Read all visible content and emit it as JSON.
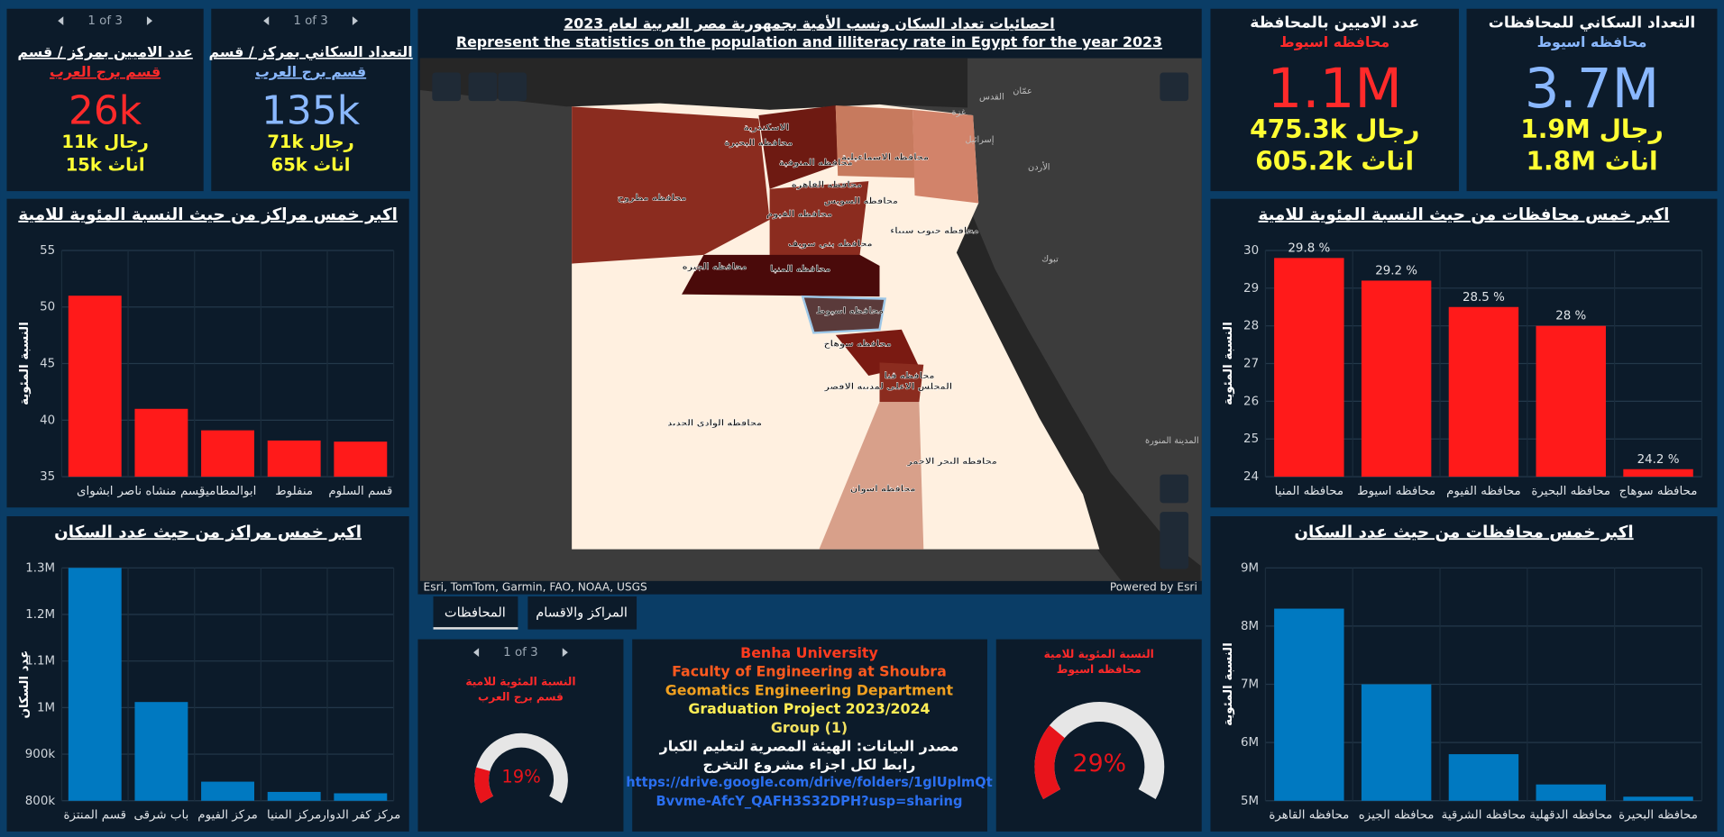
{
  "indicators": [
    {
      "pager": "1 of 3",
      "title": "عدد الاميين بمركز / قسم",
      "subtitle": "قسم برج العرب",
      "value": "26k",
      "men": "رجال 11k",
      "women": "اناث 15k",
      "color": "#ff2a2a"
    },
    {
      "pager": "1 of 3",
      "title": "التعداد السكاني بمركز / قسم",
      "subtitle": "قسم برج العرب",
      "value": "135k",
      "men": "رجال 71k",
      "women": "اناث 65k",
      "color": "#8ab8ff"
    },
    {
      "title": "عدد الاميين بالمحافظة",
      "subtitle": "محافظه اسيوط",
      "value": "1.1M",
      "men": "رجال 475.3k",
      "women": "اناث 605.2k",
      "color": "#ff2a2a"
    },
    {
      "title": "التعداد السكاني للمحافظات",
      "subtitle": "محافظه اسيوط",
      "value": "3.7M",
      "men": "رجال 1.9M",
      "women": "اناث 1.8M",
      "color": "#8ab8ff"
    }
  ],
  "chart_data": [
    {
      "type": "bar",
      "title": "اكبر خمس مراكز من حيث النسبة المئوية للامية",
      "y_label": "النسبة المئوية",
      "categories": [
        "ابشواى",
        "قسم منشاه ناصر",
        "ابوالمطامير",
        "منفلوط",
        "قسم السلوم"
      ],
      "values": [
        51,
        41,
        39.1,
        38.2,
        38.1
      ],
      "color": "#ff1a1a",
      "ylim": [
        35,
        55
      ],
      "yticks": [
        35,
        40,
        45,
        50,
        55
      ],
      "grid": true
    },
    {
      "type": "bar",
      "title": "اكبر خمس مراكز من حيث عدد السكان",
      "y_label": "عدد السكان",
      "categories": [
        "قسم المنتزة",
        "باب شرقى",
        "مركز الفيوم",
        "مركز المنيا",
        "مركز كفر الدوار"
      ],
      "values": [
        1300000,
        1012000,
        841000,
        819000,
        816000
      ],
      "color": "#0079c1",
      "ylim": [
        800000,
        1300000
      ],
      "yticks": [
        {
          "value": 800000,
          "label": "800k"
        },
        {
          "value": 900000,
          "label": "900k"
        },
        {
          "value": 1000000,
          "label": "1M"
        },
        {
          "value": 1100000,
          "label": "1.1M"
        },
        {
          "value": 1200000,
          "label": "1.2M"
        },
        {
          "value": 1300000,
          "label": "1.3M"
        }
      ],
      "grid": true
    },
    {
      "type": "bar",
      "title": "اكبر خمس محافظات من حيث النسبة المئوية للامية",
      "y_label": "النسبة المئوية",
      "categories": [
        "محافظه المنيا",
        "محافظه اسيوط",
        "محافظه الفيوم",
        "محافظه البحيرة",
        "محافظه سوهاج"
      ],
      "values": [
        29.8,
        29.2,
        28.5,
        28,
        24.2
      ],
      "value_labels": [
        "29.8 %",
        "29.2 %",
        "28.5 %",
        "28 %",
        "24.2 %"
      ],
      "color": "#ff1a1a",
      "ylim": [
        24,
        30
      ],
      "yticks": [
        24,
        25,
        26,
        27,
        28,
        29,
        30
      ],
      "grid": true
    },
    {
      "type": "bar",
      "title": "اكبر خمس محافظات من حيث عدد السكان",
      "y_label": "النسبة المئوية",
      "categories": [
        "محافظه القاهرة",
        "محافظه الجيزه",
        "محافظه الشرقية",
        "محافظه الدقهلية",
        "محافظه البحيرة"
      ],
      "values": [
        8300000,
        7000000,
        5800000,
        5280000,
        5070000
      ],
      "color": "#0079c1",
      "ylim": [
        5000000,
        9000000
      ],
      "yticks": [
        {
          "value": 5000000,
          "label": "5M"
        },
        {
          "value": 6000000,
          "label": "6M"
        },
        {
          "value": 7000000,
          "label": "7M"
        },
        {
          "value": 8000000,
          "label": "8M"
        },
        {
          "value": 9000000,
          "label": "9M"
        }
      ],
      "grid": true
    },
    {
      "type": "gauge",
      "pager": "1 of 3",
      "title": "النسبة المئوية للامية",
      "subtitle": "قسم برج العرب",
      "value": 19,
      "value_label": "19%",
      "ylim": [
        0,
        100
      ],
      "color": "#e8141b"
    },
    {
      "type": "gauge",
      "title": "النسبة المئوية للامية",
      "subtitle": "محافظه اسيوط",
      "value": 29,
      "value_label": "29%",
      "ylim": [
        0,
        100
      ],
      "color": "#e8141b"
    }
  ],
  "map": {
    "title": "احصائيات تعداد السكان ونسب الأمية بجمهورية مصر العربية لعام 2023",
    "subtitle": "Represent the statistics on the population and illiteracy rate in Egypt for the year 2023",
    "attribution": "Esri, TomTom, Garmin, FAO, NOAA, USGS",
    "powered_by": "Powered by Esri",
    "labels": [
      "محافظه مطروح",
      "الاسكندرية",
      "محافظه البحيرة",
      "محافظه المنوفية",
      "محافظه القاهرة",
      "محافظه الاسماعيلية",
      "محافظه السويس",
      "محافظه جنوب سيناء",
      "محافظه الفيوم",
      "محافظه بني سويف",
      "محافظه الجيزه",
      "محافظه المنيا",
      "محافظه اسيوط",
      "محافظه سوهاج",
      "محافظه قنا",
      "المجلس الاعلى لمدينة الاقصر",
      "محافظه الوادي الجديد",
      "محافظه البحر الاحمر",
      "محافظه اسوان",
      "عمّان",
      "القدس",
      "غزة",
      "إسرائيل",
      "الأردن",
      "تبوك",
      "المدينة المنورة"
    ]
  },
  "tabs": [
    "المحافظات",
    "المراكز والاقسام"
  ],
  "info": {
    "lines": [
      "Benha University",
      "Faculty of Engineering at Shoubra",
      "Geomatics Engineering Department",
      "Graduation Project  2023/2024",
      "Group (1)",
      "مصدر البيانات: الهيئة المصرية لتعليم الكبار",
      "رابط لكل اجزاء مشروع التخرج"
    ],
    "link": [
      "https://drive.google.com/drive/folders/1glUplmQt",
      "Bvvme-AfcY_QAFH3S32DPH?usp=sharing"
    ]
  }
}
